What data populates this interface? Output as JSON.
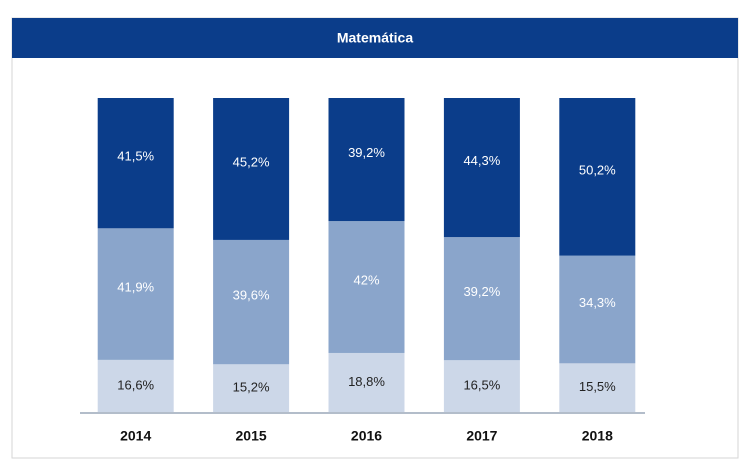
{
  "chart_data": {
    "type": "stacked_bar",
    "title": "Matemática",
    "categories": [
      "2014",
      "2015",
      "2016",
      "2017",
      "2018"
    ],
    "ylim": [
      0,
      100
    ],
    "series": [
      {
        "color": "#ccd7e8",
        "values": [
          16.6,
          15.2,
          18.8,
          16.5,
          15.5
        ],
        "value_labels": [
          "16,6%",
          "15,2%",
          "18,8%",
          "16,5%",
          "15,5%"
        ]
      },
      {
        "color": "#8aa5cb",
        "values": [
          41.9,
          39.6,
          42,
          39.2,
          34.3
        ],
        "value_labels": [
          "41,9%",
          "39,6%",
          "42%",
          "39,2%",
          "34,3%"
        ]
      },
      {
        "color": "#0b3d8a",
        "values": [
          41.5,
          45.2,
          39.2,
          44.3,
          50.2
        ],
        "value_labels": [
          "41,5%",
          "45,2%",
          "39,2%",
          "44,3%",
          "50,2%"
        ]
      }
    ]
  }
}
